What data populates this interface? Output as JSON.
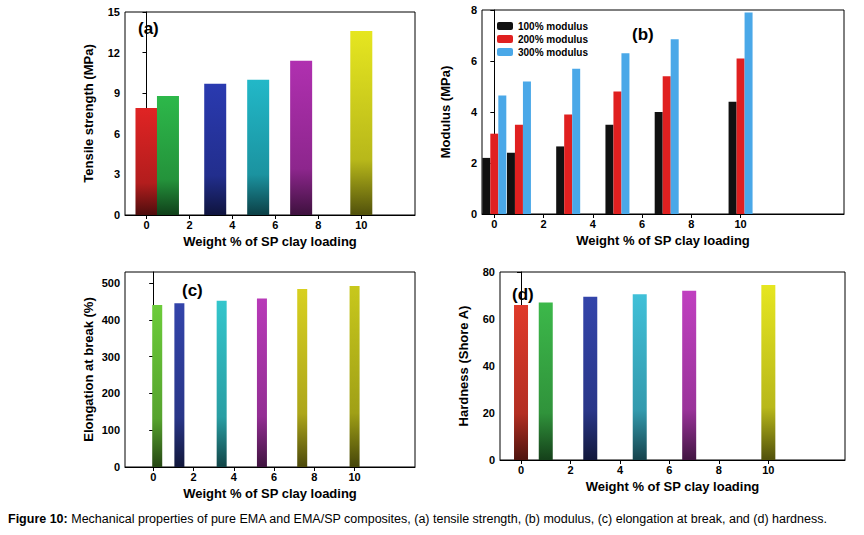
{
  "caption_label": "Figure 10:",
  "caption": "Mechanical properties of pure EMA and EMA/SP composites, (a) tensile strength, (b) modulus, (c) elongation at break, and (d) hardness.",
  "chart_data": [
    {
      "type": "bar",
      "annotation": "(a)",
      "xlabel": "Weight % of SP clay loading",
      "ylabel": "Tensile strength (MPa)",
      "x": [
        0,
        1,
        3.2,
        5.2,
        7.2,
        10
      ],
      "values": [
        7.9,
        8.8,
        9.7,
        10.0,
        11.4,
        13.6
      ],
      "colors": [
        "#e02424",
        "#2db84a",
        "#2a3ab0",
        "#22b8c8",
        "#b030b0",
        "#e6e620"
      ],
      "xlim": [
        -1,
        12.5
      ],
      "xticks": [
        0,
        2,
        4,
        6,
        8,
        10
      ],
      "ylim": [
        0,
        15
      ],
      "yticks": [
        0,
        3,
        6,
        9,
        12,
        15
      ],
      "grid": false
    },
    {
      "type": "bar",
      "annotation": "(b)",
      "xlabel": "Weight % of SP clay loading",
      "ylabel": "Modulus (MPa)",
      "x": [
        0,
        1,
        3,
        5,
        7,
        10
      ],
      "series": [
        {
          "name": "100% modulus",
          "color": "#111111",
          "values": [
            2.2,
            2.4,
            2.65,
            3.5,
            4.0,
            4.4
          ]
        },
        {
          "name": "200% modulus",
          "color": "#e02020",
          "values": [
            3.15,
            3.5,
            3.9,
            4.8,
            5.4,
            6.1
          ]
        },
        {
          "name": "300% modulus",
          "color": "#4aa8e8",
          "values": [
            4.65,
            5.2,
            5.7,
            6.3,
            6.85,
            7.9
          ]
        }
      ],
      "legend": "upper left",
      "xlim": [
        -0.5,
        14.2
      ],
      "xticks": [
        0,
        2,
        4,
        6,
        8,
        10
      ],
      "ylim": [
        0,
        8
      ],
      "yticks": [
        0,
        2,
        4,
        6,
        8
      ],
      "grid": false
    },
    {
      "type": "bar",
      "annotation": "(c)",
      "xlabel": "Weight % of SP clay loading",
      "ylabel": "Elongation at break (%)",
      "x": [
        0.2,
        1.3,
        3.4,
        5.4,
        7.4,
        10
      ],
      "values": [
        440,
        445,
        452,
        458,
        484,
        492
      ],
      "colors": [
        "#6ccc3a",
        "#3344aa",
        "#33c6cc",
        "#b83ab8",
        "#d8d020",
        "#c8c81c"
      ],
      "xlim": [
        -1.4,
        13
      ],
      "xticks": [
        0,
        2,
        4,
        6,
        8,
        10
      ],
      "ylim": [
        0,
        530
      ],
      "yticks": [
        0,
        100,
        200,
        300,
        400,
        500
      ],
      "grid": false
    },
    {
      "type": "bar",
      "annotation": "(d)",
      "xlabel": "Weight % of SP clay loading",
      "ylabel": "Hardness (Shore A)",
      "x": [
        0,
        1,
        2.8,
        4.8,
        6.8,
        10
      ],
      "values": [
        66,
        67,
        69.5,
        70.5,
        72,
        74.5
      ],
      "colors": [
        "#e03a2a",
        "#3cb84a",
        "#3344aa",
        "#40c0d8",
        "#c040c0",
        "#e6e620"
      ],
      "xlim": [
        -0.85,
        13.1
      ],
      "xticks": [
        0,
        2,
        4,
        6,
        8,
        10
      ],
      "ylim": [
        0,
        80
      ],
      "yticks": [
        0,
        20,
        40,
        60,
        80
      ],
      "grid": false
    }
  ]
}
